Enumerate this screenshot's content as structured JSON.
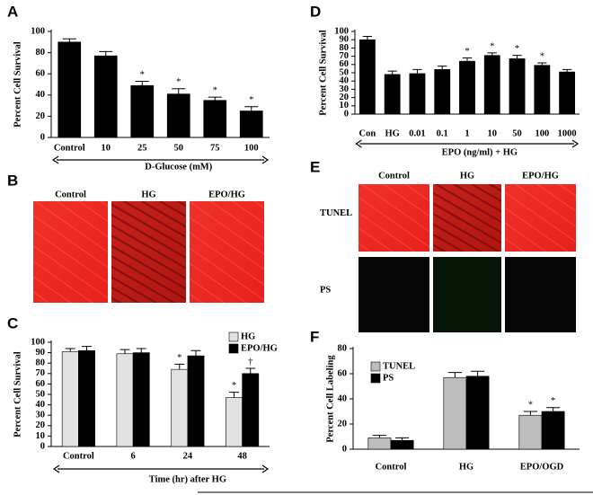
{
  "chart_data": [
    {
      "type": "bar",
      "panel": "A",
      "ylabel": "Percent Cell Survival",
      "xlabel": "D-Glucose (mM)",
      "categories": [
        "Control",
        "10",
        "25",
        "50",
        "75",
        "100"
      ],
      "series": [
        {
          "name": null,
          "color": "#000000",
          "values": [
            90,
            77,
            49,
            41,
            35,
            25
          ],
          "errors": [
            3,
            4,
            4,
            5,
            3,
            4
          ],
          "markers": [
            null,
            null,
            "*",
            "*",
            "*",
            "*"
          ]
        }
      ],
      "ylim": [
        0,
        100
      ],
      "yticks": [
        0,
        20,
        40,
        60,
        80,
        100
      ]
    },
    {
      "type": "bar",
      "panel": "D",
      "ylabel": "Percent Cell Survival",
      "xlabel": "EPO (ng/ml) + HG",
      "categories": [
        "Con",
        "HG",
        "0.01",
        "0.1",
        "1",
        "10",
        "50",
        "100",
        "1000"
      ],
      "series": [
        {
          "name": null,
          "color": "#000000",
          "values": [
            90,
            48,
            49,
            54,
            64,
            71,
            67,
            59,
            51
          ],
          "errors": [
            4,
            4,
            5,
            4,
            4,
            3,
            4,
            3,
            3
          ],
          "markers": [
            null,
            null,
            null,
            null,
            "*",
            "*",
            "*",
            "*",
            null
          ]
        }
      ],
      "ylim": [
        0,
        100
      ],
      "yticks": [
        0,
        10,
        20,
        30,
        40,
        50,
        60,
        70,
        80,
        90,
        100
      ]
    },
    {
      "type": "bar",
      "panel": "C",
      "ylabel": "Percent Cell Survival",
      "xlabel": "Time (hr) after HG",
      "categories": [
        "Control",
        "6",
        "24",
        "48"
      ],
      "series": [
        {
          "name": "HG",
          "color": "#e2e2e2",
          "values": [
            91,
            89,
            74,
            47
          ],
          "errors": [
            3,
            4,
            5,
            5
          ],
          "markers": [
            null,
            null,
            "*",
            "*"
          ]
        },
        {
          "name": "EPO/HG",
          "color": "#000000",
          "values": [
            92,
            90,
            87,
            70
          ],
          "errors": [
            4,
            4,
            5,
            5
          ],
          "markers": [
            null,
            null,
            null,
            "†"
          ]
        }
      ],
      "ylim": [
        0,
        100
      ],
      "yticks": [
        0,
        10,
        20,
        30,
        40,
        50,
        60,
        70,
        80,
        90,
        100
      ]
    },
    {
      "type": "bar",
      "panel": "F",
      "ylabel": "Percent Cell Labeling",
      "xlabel": null,
      "categories": [
        "Control",
        "HG",
        "EPO/OGD"
      ],
      "series": [
        {
          "name": "TUNEL",
          "color": "#bdbdbd",
          "values": [
            9,
            57,
            27
          ],
          "errors": [
            2,
            4,
            3
          ],
          "markers": [
            null,
            null,
            "*"
          ]
        },
        {
          "name": "PS",
          "color": "#000000",
          "values": [
            7,
            58,
            30
          ],
          "errors": [
            2,
            4,
            3
          ],
          "markers": [
            null,
            null,
            "*"
          ]
        }
      ],
      "ylim": [
        0,
        80
      ],
      "yticks": [
        0,
        20,
        40,
        60,
        80
      ]
    }
  ],
  "image_panels": [
    {
      "panel": "B",
      "columns": [
        "Control",
        "HG",
        "EPO/HG"
      ]
    },
    {
      "panel": "E",
      "columns": [
        "Control",
        "HG",
        "EPO/HG"
      ],
      "rows": [
        "TUNEL",
        "PS"
      ]
    }
  ]
}
